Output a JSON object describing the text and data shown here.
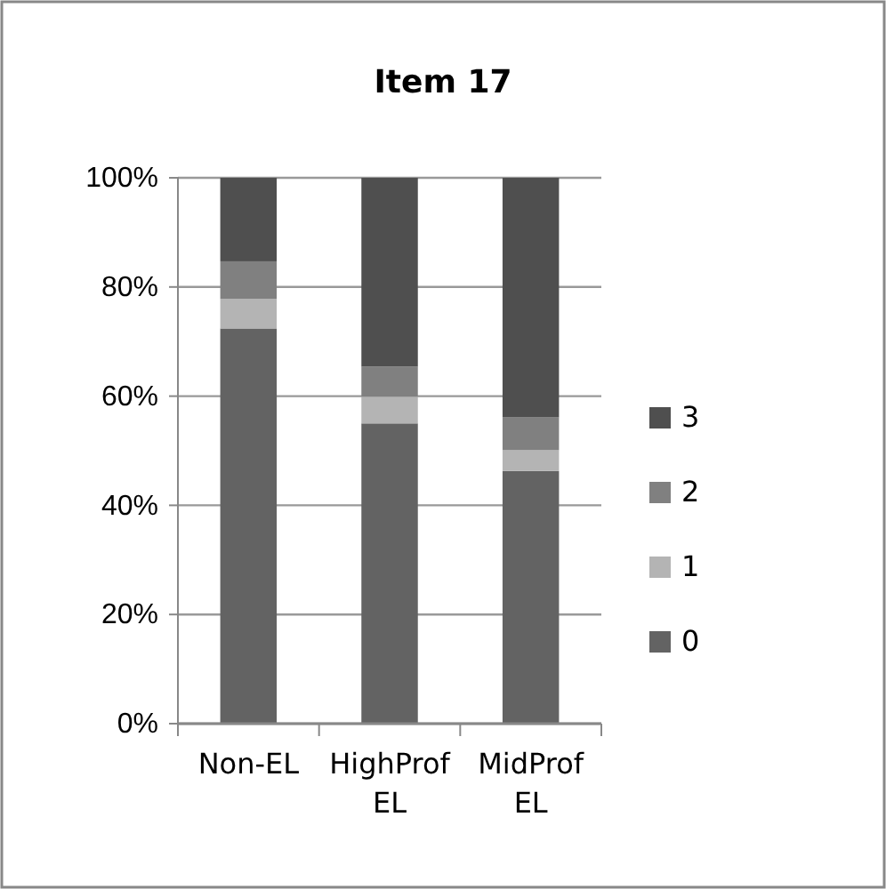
{
  "chart_data": {
    "type": "bar",
    "title": "Item 17",
    "categories": [
      "Non-EL",
      "HighProf EL",
      "MidProf EL"
    ],
    "stacked": true,
    "series": [
      {
        "name": "0",
        "color": "#636363",
        "values": [
          72.4,
          55.0,
          46.3
        ]
      },
      {
        "name": "1",
        "color": "#b4b4b4",
        "values": [
          5.4,
          4.9,
          3.8
        ]
      },
      {
        "name": "2",
        "color": "#808080",
        "values": [
          6.9,
          5.5,
          6.0
        ]
      },
      {
        "name": "3",
        "color": "#4f4f4f",
        "values": [
          15.3,
          34.6,
          43.9
        ]
      }
    ],
    "ylim": [
      0,
      100
    ],
    "yticks": [
      {
        "value": 0,
        "label": "0%"
      },
      {
        "value": 20,
        "label": "20%"
      },
      {
        "value": 40,
        "label": "40%"
      },
      {
        "value": 60,
        "label": "60%"
      },
      {
        "value": 80,
        "label": "80%"
      },
      {
        "value": 100,
        "label": "100%"
      }
    ],
    "grid": "y",
    "legend": "right"
  }
}
